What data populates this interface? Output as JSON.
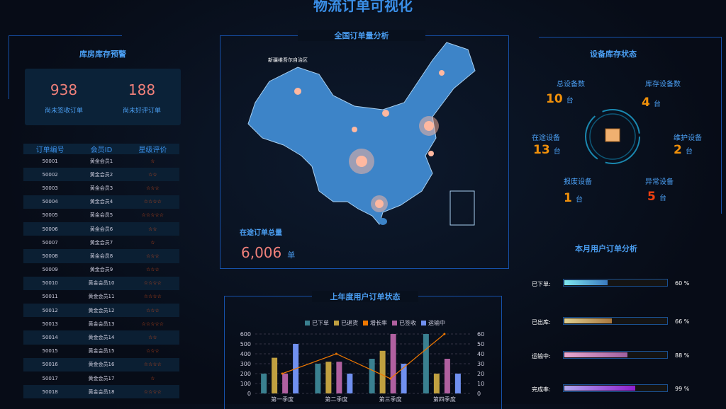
{
  "header": {
    "title": "物流订单可视化"
  },
  "warehouse": {
    "title": "库房库存预警",
    "kpis": [
      {
        "value": "938",
        "label": "尚未签收订单"
      },
      {
        "value": "188",
        "label": "尚未好评订单"
      }
    ],
    "columns": [
      "订单编号",
      "会员ID",
      "星级评价"
    ],
    "rows": [
      [
        "50001",
        "黄金会员1",
        1
      ],
      [
        "50002",
        "黄金会员2",
        2
      ],
      [
        "50003",
        "黄金会员3",
        3
      ],
      [
        "50004",
        "黄金会员4",
        4
      ],
      [
        "50005",
        "黄金会员5",
        5
      ],
      [
        "50006",
        "黄金会员6",
        2
      ],
      [
        "50007",
        "黄金会员7",
        1
      ],
      [
        "50008",
        "黄金会员8",
        3
      ],
      [
        "50009",
        "黄金会员9",
        3
      ],
      [
        "50010",
        "黄金会员10",
        4
      ],
      [
        "50011",
        "黄金会员11",
        4
      ],
      [
        "50012",
        "黄金会员12",
        3
      ],
      [
        "50013",
        "黄金会员13",
        5
      ],
      [
        "50014",
        "黄金会员14",
        2
      ],
      [
        "50015",
        "黄金会员15",
        3
      ],
      [
        "50016",
        "黄金会员16",
        4
      ],
      [
        "50017",
        "黄金会员17",
        1
      ],
      [
        "50018",
        "黄金会员18",
        4
      ]
    ]
  },
  "map": {
    "title": "全国订单量分析",
    "label": "新疆维吾尔自治区",
    "total_label": "在途订单总量",
    "total_value": "6,006",
    "total_unit": "单"
  },
  "devices": {
    "title": "设备库存状态",
    "unit": "台",
    "items": [
      {
        "label": "总设备数",
        "value": "10"
      },
      {
        "label": "库存设备数",
        "value": "4"
      },
      {
        "label": "在途设备",
        "value": "13"
      },
      {
        "label": "维护设备",
        "value": "2"
      },
      {
        "label": "报废设备",
        "value": "1"
      },
      {
        "label": "异常设备",
        "value": "5"
      }
    ]
  },
  "monthly": {
    "title": "本月用户订单分析",
    "items": [
      {
        "label": "已下单:",
        "percent": 60,
        "text": "60 %",
        "colors": [
          "#7ee8f0",
          "#3a7ac0"
        ]
      },
      {
        "label": "已出库:",
        "percent": 66,
        "text": "66 %",
        "colors": [
          "#e0d090",
          "#a87840"
        ]
      },
      {
        "label": "运输中:",
        "percent": 88,
        "text": "88 %",
        "colors": [
          "#e8a8d0",
          "#a060a0"
        ]
      },
      {
        "label": "完成率:",
        "percent": 99,
        "text": "99 %",
        "colors": [
          "#b0a8f0",
          "#9020d0"
        ]
      }
    ]
  },
  "chart_data": {
    "type": "bar",
    "title": "上年度用户订单状态",
    "categories": [
      "第一季度",
      "第二季度",
      "第三季度",
      "第四季度"
    ],
    "ylim": [
      0,
      600
    ],
    "y2lim": [
      0,
      60
    ],
    "yticks": [
      0,
      100,
      200,
      300,
      400,
      500,
      600
    ],
    "y2ticks": [
      0,
      10,
      20,
      30,
      40,
      50,
      60
    ],
    "grid": true,
    "legend": "top",
    "series": [
      {
        "name": "已下单",
        "values": [
          200,
          300,
          350,
          600
        ],
        "color": "#3a8090"
      },
      {
        "name": "已退货",
        "values": [
          360,
          320,
          430,
          200
        ],
        "color": "#c0a040"
      },
      {
        "name": "增长率",
        "type": "line",
        "axis": "right",
        "values": [
          20,
          40,
          15,
          60
        ],
        "color": "#f07800"
      },
      {
        "name": "已签收",
        "values": [
          200,
          320,
          600,
          350
        ],
        "color": "#b060a0"
      },
      {
        "name": "运输中",
        "values": [
          500,
          200,
          300,
          200
        ],
        "color": "#7090f0"
      }
    ]
  }
}
